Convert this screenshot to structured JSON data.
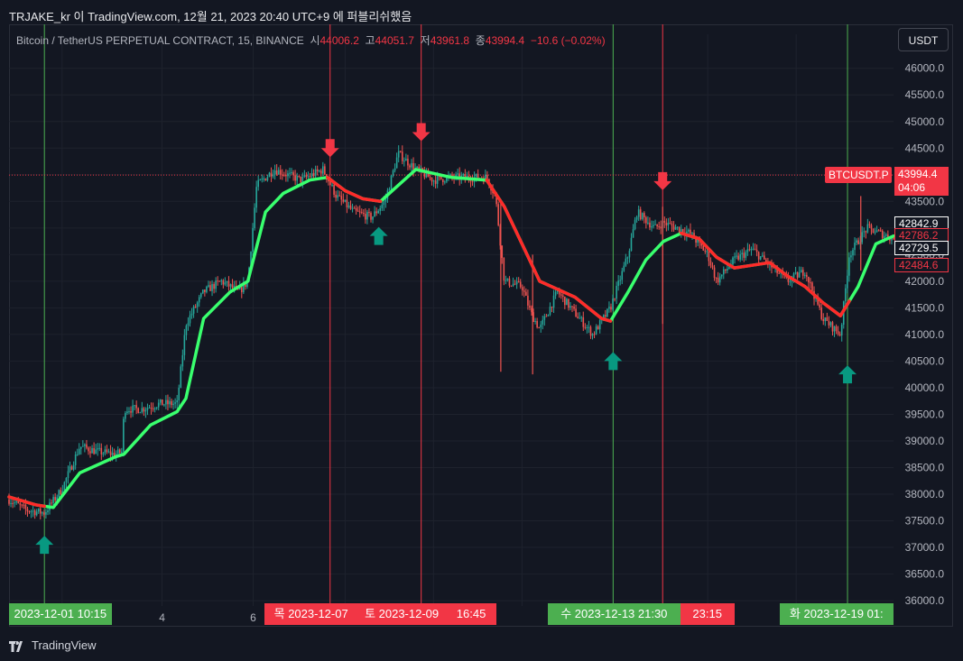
{
  "header": {
    "publish_line": "TRJAKE_kr 이 TradingView.com, 12월 21, 2023 20:40 UTC+9 에 퍼블리쉬했음"
  },
  "legend": {
    "symbol": "Bitcoin / TetherUS PERPETUAL CONTRACT, 15, BINANCE",
    "open_label": "시",
    "open": "44006.2",
    "high_label": "고",
    "high": "44051.7",
    "low_label": "저",
    "low": "43961.8",
    "close_label": "종",
    "close": "43994.4",
    "change": "−10.6 (−0.02%)"
  },
  "currency_button": "USDT",
  "footer": {
    "brand": "TradingView"
  },
  "colors": {
    "background": "#131722",
    "grid": "#1e222d",
    "bull": "#26a69a",
    "bear": "#ef5350",
    "ma_up": "#39ff6e",
    "ma_down": "#ff2a2a",
    "signal_green": "#4caf50",
    "signal_red": "#f23645",
    "arrow_up": "#089981",
    "arrow_down": "#f23645"
  },
  "chart_data": {
    "type": "candlestick",
    "symbol": "BTCUSDT.P",
    "timeframe": "15",
    "ylim": [
      35900,
      46300
    ],
    "y_ticks": [
      "36000.0",
      "36500.0",
      "37000.0",
      "37500.0",
      "38000.0",
      "38500.0",
      "39000.0",
      "39500.0",
      "40000.0",
      "40500.0",
      "41000.0",
      "41500.0",
      "42000.0",
      "42500.0",
      "43000.0",
      "43500.0",
      "44000.0",
      "44500.0",
      "45000.0",
      "45500.0",
      "46000.0"
    ],
    "x_tick_labels": [
      {
        "label": "4",
        "x_frac": 0.173
      },
      {
        "label": "6",
        "x_frac": 0.276
      }
    ],
    "price_path": [
      [
        0.0,
        37900
      ],
      [
        0.02,
        37700
      ],
      [
        0.04,
        37650
      ],
      [
        0.06,
        38100
      ],
      [
        0.07,
        38500
      ],
      [
        0.08,
        38900
      ],
      [
        0.1,
        38800
      ],
      [
        0.12,
        38750
      ],
      [
        0.128,
        38800
      ],
      [
        0.13,
        39600
      ],
      [
        0.15,
        39600
      ],
      [
        0.17,
        39700
      ],
      [
        0.19,
        39700
      ],
      [
        0.2,
        41200
      ],
      [
        0.22,
        41800
      ],
      [
        0.24,
        42000
      ],
      [
        0.26,
        41800
      ],
      [
        0.27,
        42000
      ],
      [
        0.28,
        43800
      ],
      [
        0.3,
        44100
      ],
      [
        0.33,
        43900
      ],
      [
        0.355,
        44100
      ],
      [
        0.37,
        43600
      ],
      [
        0.39,
        43300
      ],
      [
        0.41,
        43200
      ],
      [
        0.425,
        43500
      ],
      [
        0.44,
        44400
      ],
      [
        0.46,
        44100
      ],
      [
        0.48,
        43900
      ],
      [
        0.5,
        43950
      ],
      [
        0.54,
        43950
      ],
      [
        0.55,
        43600
      ],
      [
        0.56,
        42000
      ],
      [
        0.58,
        41900
      ],
      [
        0.59,
        41400
      ],
      [
        0.6,
        41100
      ],
      [
        0.62,
        41800
      ],
      [
        0.64,
        41400
      ],
      [
        0.66,
        41000
      ],
      [
        0.68,
        41500
      ],
      [
        0.7,
        42500
      ],
      [
        0.71,
        43300
      ],
      [
        0.73,
        43000
      ],
      [
        0.74,
        43100
      ],
      [
        0.77,
        42900
      ],
      [
        0.79,
        42500
      ],
      [
        0.8,
        42000
      ],
      [
        0.82,
        42400
      ],
      [
        0.84,
        42600
      ],
      [
        0.86,
        42300
      ],
      [
        0.88,
        42000
      ],
      [
        0.9,
        42200
      ],
      [
        0.92,
        41300
      ],
      [
        0.94,
        41000
      ],
      [
        0.95,
        42500
      ],
      [
        0.97,
        43000
      ],
      [
        1.0,
        42800
      ]
    ],
    "moving_average": [
      [
        0.0,
        37950
      ],
      [
        0.03,
        37800
      ],
      [
        0.05,
        37750
      ],
      [
        0.08,
        38400
      ],
      [
        0.12,
        38700
      ],
      [
        0.13,
        38750
      ],
      [
        0.16,
        39300
      ],
      [
        0.19,
        39550
      ],
      [
        0.2,
        39800
      ],
      [
        0.22,
        41300
      ],
      [
        0.25,
        41800
      ],
      [
        0.27,
        42000
      ],
      [
        0.29,
        43300
      ],
      [
        0.31,
        43650
      ],
      [
        0.34,
        43900
      ],
      [
        0.36,
        43950
      ],
      [
        0.38,
        43700
      ],
      [
        0.4,
        43550
      ],
      [
        0.42,
        43500
      ],
      [
        0.44,
        43800
      ],
      [
        0.46,
        44100
      ],
      [
        0.5,
        43950
      ],
      [
        0.54,
        43900
      ],
      [
        0.56,
        43400
      ],
      [
        0.58,
        42700
      ],
      [
        0.6,
        42000
      ],
      [
        0.62,
        41850
      ],
      [
        0.64,
        41700
      ],
      [
        0.67,
        41300
      ],
      [
        0.68,
        41250
      ],
      [
        0.7,
        41800
      ],
      [
        0.72,
        42400
      ],
      [
        0.74,
        42750
      ],
      [
        0.76,
        42900
      ],
      [
        0.78,
        42800
      ],
      [
        0.8,
        42450
      ],
      [
        0.82,
        42250
      ],
      [
        0.84,
        42300
      ],
      [
        0.86,
        42350
      ],
      [
        0.88,
        42100
      ],
      [
        0.9,
        41900
      ],
      [
        0.92,
        41600
      ],
      [
        0.94,
        41350
      ],
      [
        0.96,
        41900
      ],
      [
        0.98,
        42700
      ],
      [
        1.0,
        42850
      ]
    ],
    "ma_red_segments": [
      [
        0.0,
        0.04
      ],
      [
        0.36,
        0.42
      ],
      [
        0.54,
        0.68
      ],
      [
        0.76,
        0.95
      ]
    ],
    "signals": [
      {
        "type": "buy",
        "x_frac": 0.04,
        "y": 37050
      },
      {
        "type": "sell",
        "x_frac": 0.363,
        "y": 44500
      },
      {
        "type": "buy",
        "x_frac": 0.418,
        "y": 42850
      },
      {
        "type": "sell",
        "x_frac": 0.466,
        "y": 44800
      },
      {
        "type": "buy",
        "x_frac": 0.683,
        "y": 40500
      },
      {
        "type": "sell",
        "x_frac": 0.739,
        "y": 43880
      },
      {
        "type": "buy",
        "x_frac": 0.948,
        "y": 40250
      }
    ],
    "vertical_lines": [
      {
        "color": "green",
        "x_frac": 0.04
      },
      {
        "color": "red",
        "x_frac": 0.363
      },
      {
        "color": "red",
        "x_frac": 0.466
      },
      {
        "color": "green",
        "x_frac": 0.683
      },
      {
        "color": "red",
        "x_frac": 0.739
      },
      {
        "color": "green",
        "x_frac": 0.948
      }
    ],
    "time_labels": [
      {
        "text": "2023-12-01   10:15",
        "color": "green",
        "x_frac": 0.0,
        "width_frac": 0.116
      },
      {
        "text": "목 2023-12-07",
        "color": "red",
        "x_frac": 0.289,
        "width_frac": 0.105
      },
      {
        "text": "토 2023-12-09",
        "color": "red",
        "x_frac": 0.394,
        "width_frac": 0.1
      },
      {
        "text": "16:45",
        "color": "red",
        "x_frac": 0.494,
        "width_frac": 0.057
      },
      {
        "text": "수 2023-12-13   21:30",
        "color": "green",
        "x_frac": 0.609,
        "width_frac": 0.15
      },
      {
        "text": "23:15",
        "color": "red",
        "x_frac": 0.759,
        "width_frac": 0.061
      },
      {
        "text": "화 2023-12-19   01:",
        "color": "green",
        "x_frac": 0.871,
        "width_frac": 0.129
      }
    ],
    "price_labels": [
      {
        "text": "BTCUSDT.P",
        "value": 43994.4,
        "kind": "name"
      },
      {
        "text": "43994.4",
        "sub": "04:06",
        "value": 43994.4,
        "kind": "last"
      },
      {
        "text": "42842.9",
        "value": 42842.9,
        "kind": "white"
      },
      {
        "text": "42786.2",
        "value": 42786.2,
        "kind": "red-outline"
      },
      {
        "text": "42729.5",
        "value": 42729.5,
        "kind": "white"
      },
      {
        "text": "42484.6",
        "value": 42484.6,
        "kind": "red-outline"
      }
    ],
    "last_price_line": 43994.4
  }
}
